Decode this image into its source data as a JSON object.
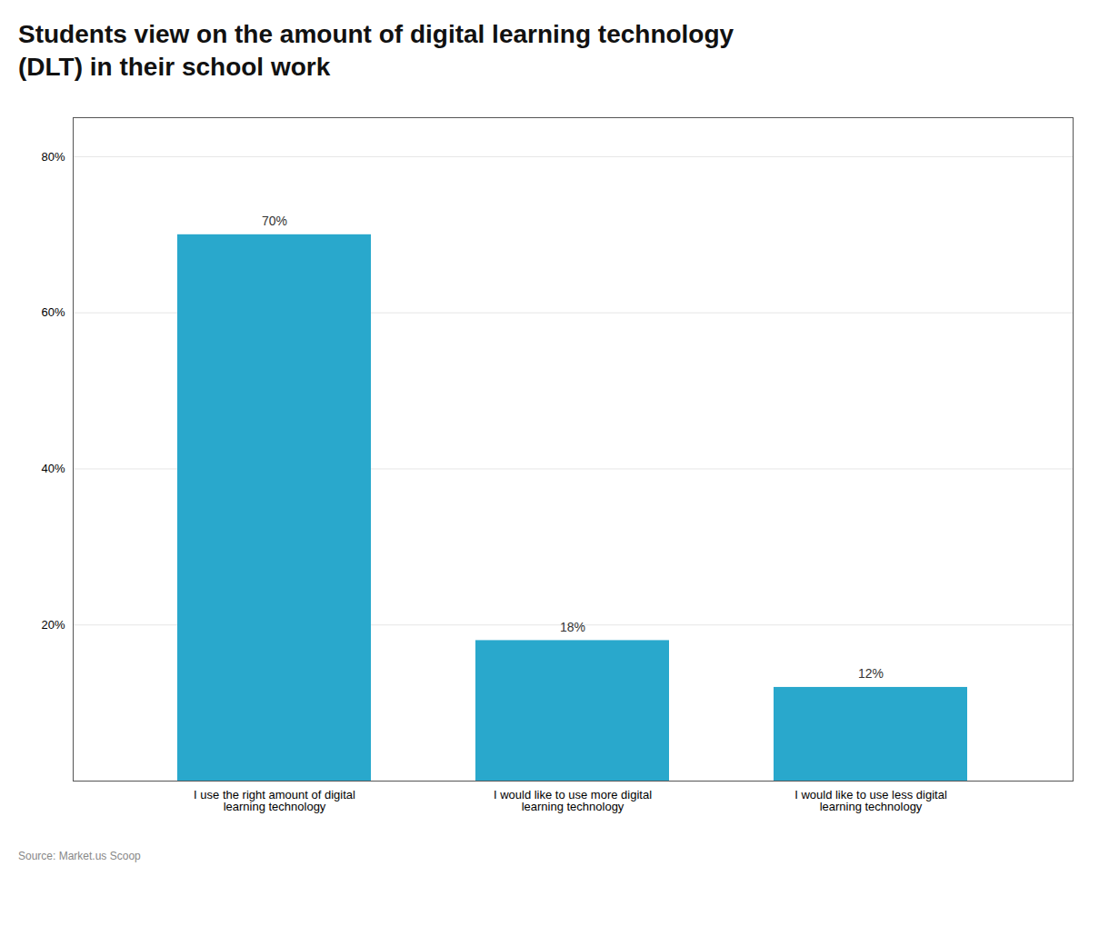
{
  "chart_data": {
    "type": "bar",
    "title": "Students view on the amount of digital learning technology\n(DLT) in their school work",
    "categories": [
      "I use the right amount of digital\nlearning technology",
      "I would like to use more digital\nlearning technology",
      "I would like to use less digital\nlearning technology"
    ],
    "values": [
      70,
      18,
      12
    ],
    "value_labels": [
      "70%",
      "18%",
      "12%"
    ],
    "data_labels": true,
    "color": "#29a8cc",
    "ylim": [
      0,
      85
    ],
    "yticks": [
      {
        "value": 20,
        "label": "20%"
      },
      {
        "value": 40,
        "label": "40%"
      },
      {
        "value": 60,
        "label": "60%"
      },
      {
        "value": 80,
        "label": "80%"
      }
    ],
    "grid": true,
    "caption": "Source: Market.us Scoop"
  }
}
